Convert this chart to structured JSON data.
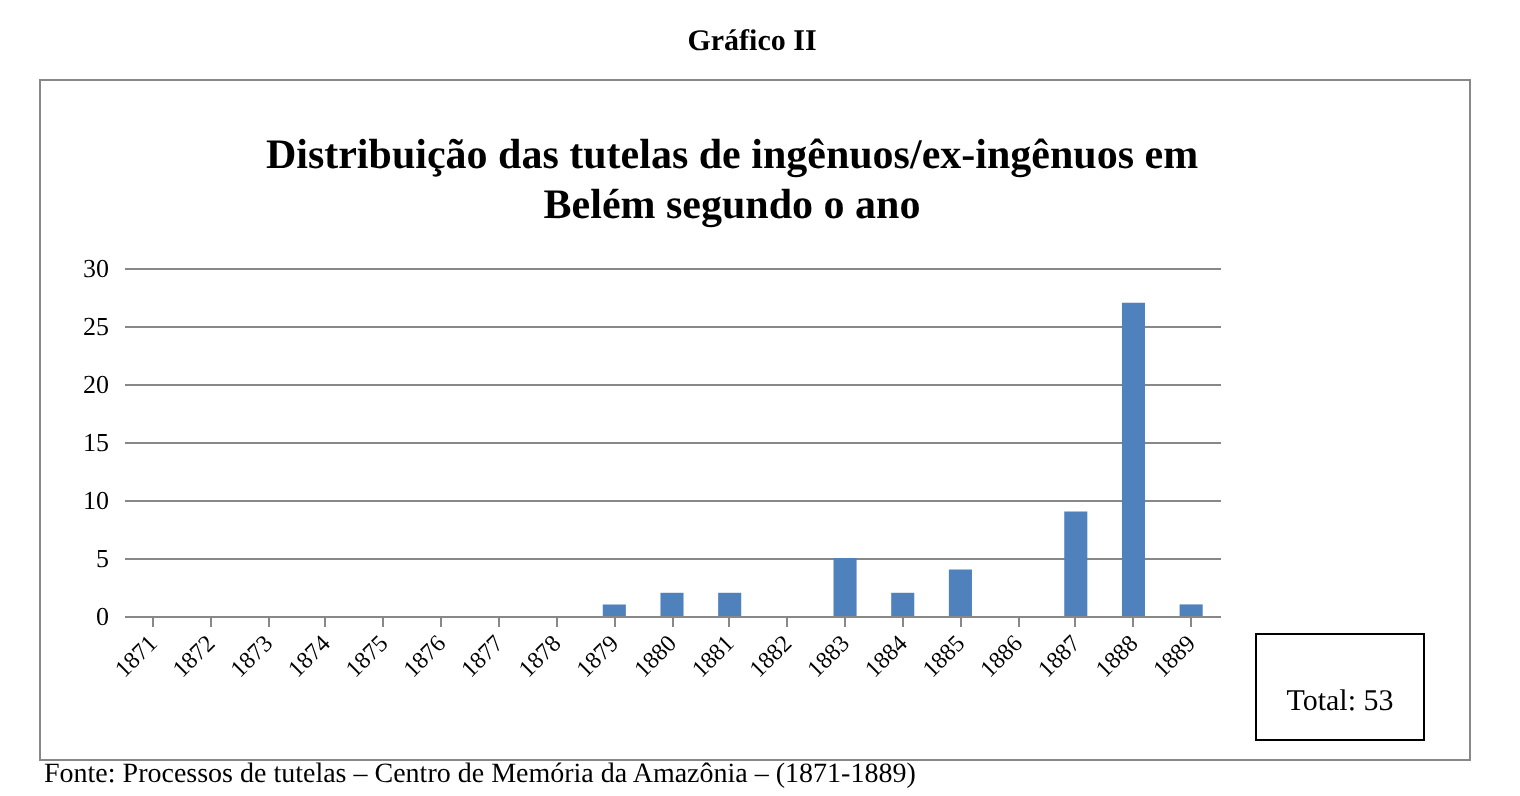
{
  "chart_data": {
    "type": "bar",
    "title": "Distribuição das tutelas de ingênuos/ex-ingênuos  em Belém segundo o ano",
    "categories": [
      "1871",
      "1872",
      "1873",
      "1874",
      "1875",
      "1876",
      "1877",
      "1878",
      "1879",
      "1880",
      "1881",
      "1882",
      "1883",
      "1884",
      "1885",
      "1886",
      "1887",
      "1888",
      "1889"
    ],
    "values": [
      0,
      0,
      0,
      0,
      0,
      0,
      0,
      0,
      1,
      2,
      2,
      0,
      5,
      2,
      4,
      0,
      9,
      27,
      1
    ],
    "color": "#4f81bd",
    "ylim": [
      0,
      30
    ],
    "yticks": [
      0,
      5,
      10,
      15,
      20,
      25,
      30
    ],
    "grid": "y",
    "annotations": [
      "Gráfico II",
      "Total: 53",
      "Fonte: Processos de tutelas – Centro de Memória da Amazônia – (1871-1889)"
    ]
  }
}
